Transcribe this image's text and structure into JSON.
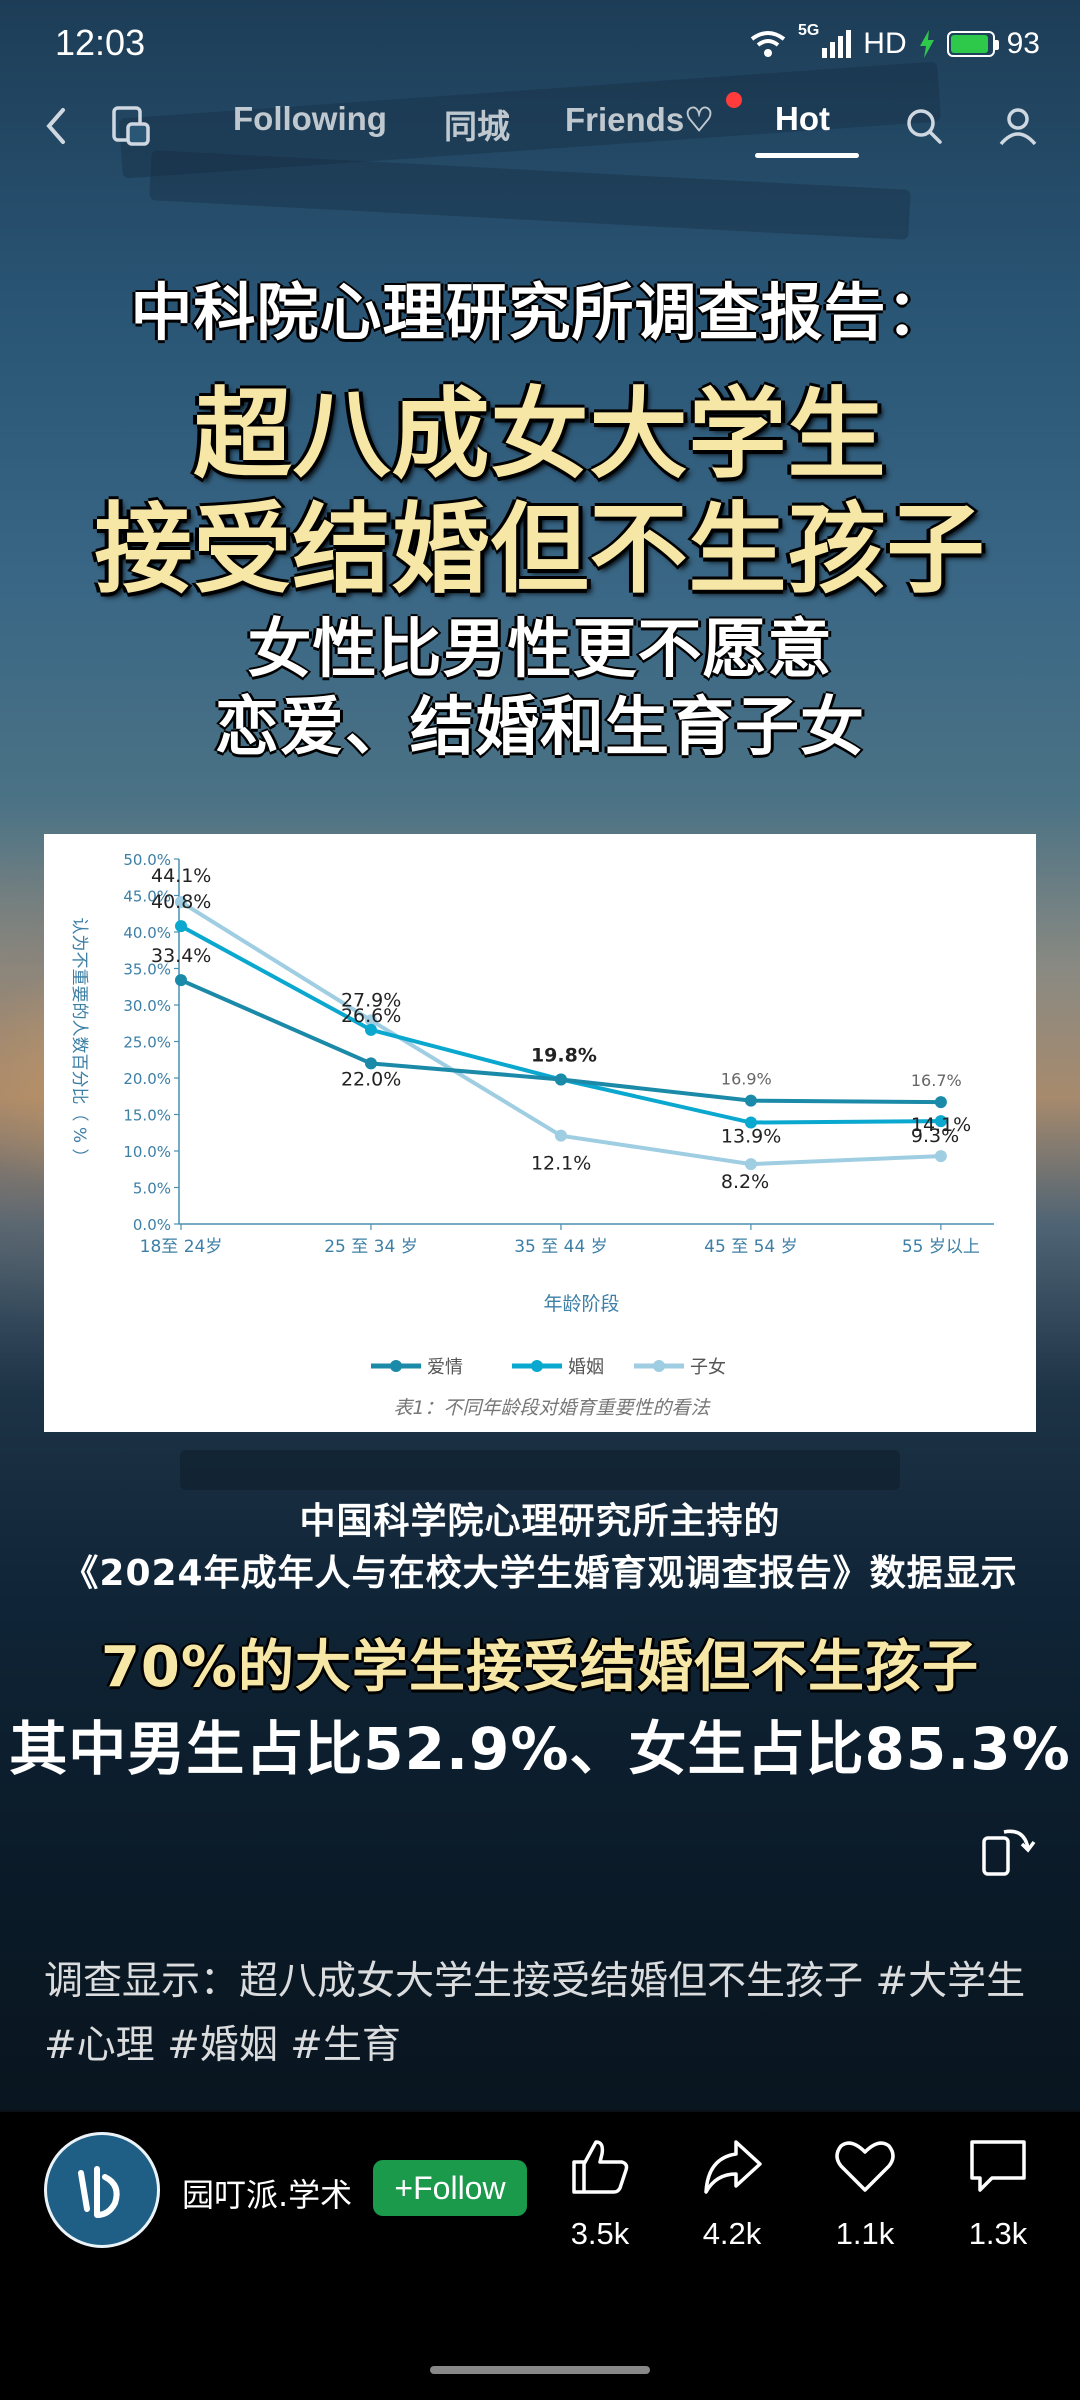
{
  "status_bar": {
    "time": "12:03",
    "network": "5G",
    "hd": "HD",
    "battery": "93",
    "battery_level": 0.93
  },
  "nav": {
    "tabs": [
      {
        "label": "Following",
        "active": false
      },
      {
        "label": "同城",
        "active": false
      },
      {
        "label": "Friends♡",
        "active": false
      },
      {
        "label": "Hot",
        "active": true
      }
    ],
    "icons": [
      "back-icon",
      "multiwindow-icon",
      "search-icon",
      "profile-icon"
    ]
  },
  "post": {
    "headline_1": "中科院心理研究所调查报告：",
    "headline_2": "超八成女大学生",
    "headline_3": "接受结婚但不生孩子",
    "headline_4": "女性比男性更不愿意",
    "headline_5": "恋爱、结婚和生育子女",
    "info_1": "中国科学院心理研究所主持的",
    "info_2": "《2024年成年人与在校大学生婚育观调查报告》数据显示",
    "stat_1": "70%的大学生接受结婚但不生孩子",
    "stat_2": "其中男生占比52.9%、女生占比85.3%",
    "caption": "调查显示：超八成女大学生接受结婚但不生孩子 #大学生 #心理 #婚姻 #生育"
  },
  "chart_data": {
    "type": "line",
    "categories": [
      "18至 24岁",
      "25 至 34 岁",
      "35 至 44 岁",
      "45 至 54 岁",
      "55 岁以上"
    ],
    "series": [
      {
        "name": "爱情",
        "values": [
          33.4,
          22.0,
          19.8,
          16.9,
          16.7
        ],
        "labels": [
          "33.4%",
          "22.0%",
          "19.8%",
          "16.9%",
          "16.7%"
        ],
        "color": "#1b8aa8"
      },
      {
        "name": "婚姻",
        "values": [
          40.8,
          26.6,
          19.8,
          13.9,
          14.1
        ],
        "labels": [
          "40.8%",
          "26.6%",
          "19.8%",
          "13.9%",
          "14.1%"
        ],
        "color": "#0aa7cf"
      },
      {
        "name": "子女",
        "values": [
          44.1,
          27.9,
          12.1,
          8.2,
          9.3
        ],
        "labels": [
          "44.1%",
          "27.9%",
          "12.1%",
          "8.2%",
          "9.3%"
        ],
        "color": "#9fcde2"
      }
    ],
    "yticks": [
      "0.0%",
      "5.0%",
      "10.0%",
      "15.0%",
      "20.0%",
      "25.0%",
      "30.0%",
      "35.0%",
      "40.0%",
      "45.0%",
      "50.0%"
    ],
    "ylim": [
      0,
      50
    ],
    "ylabel": "认为不重要的人数百分比（ % ）",
    "xlabel": "年龄阶段",
    "caption": "表1：不同年龄段对婚育重要性的看法",
    "legend_position": "bottom"
  },
  "author": {
    "name": "园叮派.学术",
    "follow_label": "+Follow"
  },
  "actions": {
    "like": {
      "count": "3.5k"
    },
    "share": {
      "count": "4.2k"
    },
    "favorite": {
      "count": "1.1k"
    },
    "comment": {
      "count": "1.3k"
    }
  }
}
